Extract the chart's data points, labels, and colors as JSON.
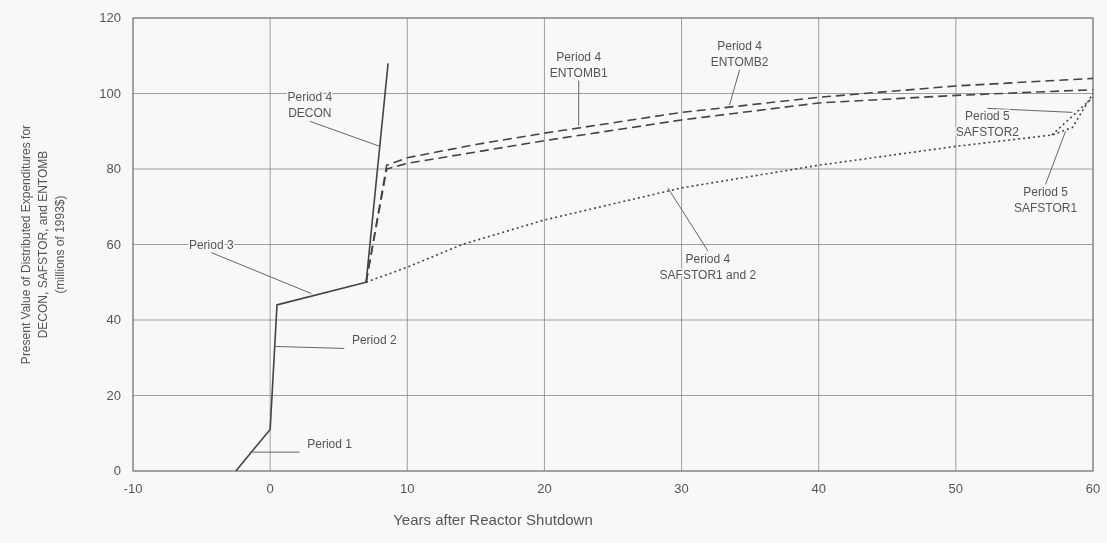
{
  "chart_data": {
    "type": "line",
    "xlabel": "Years after Reactor Shutdown",
    "ylabel": "Present Value of Distributed Expenditures for\nDECON, SAFSTOR, and ENTOMB\n(millions of 1993$)",
    "xlim": [
      -10,
      60
    ],
    "xticks": [
      -10,
      0,
      10,
      20,
      30,
      40,
      50,
      60
    ],
    "ylim": [
      0,
      120
    ],
    "yticks": [
      0,
      20,
      40,
      60,
      80,
      100,
      120
    ],
    "grid": true,
    "marker": "none",
    "series": [
      {
        "color": "#444444",
        "line_style": "solid",
        "x": [
          -2.5,
          0,
          0.5,
          7,
          8.6
        ],
        "values": [
          0,
          11,
          44,
          50,
          108
        ]
      },
      {
        "color": "#444444",
        "line_style": "dashed",
        "x": [
          7,
          8.5,
          10,
          15,
          20,
          30,
          40,
          50,
          60
        ],
        "values": [
          50,
          81,
          83,
          86.5,
          89.5,
          95,
          99,
          102,
          104
        ]
      },
      {
        "color": "#444444",
        "line_style": "dashed",
        "x": [
          7,
          8.5,
          10,
          15,
          20,
          30,
          40,
          50,
          60
        ],
        "values": [
          50,
          80,
          81.5,
          84.5,
          87.5,
          93,
          97.5,
          99.5,
          101
        ]
      },
      {
        "color": "#444444",
        "line_style": "dotted",
        "x": [
          7,
          10,
          14,
          20,
          30,
          40,
          50,
          57,
          58.5,
          60
        ],
        "values": [
          50,
          54,
          60,
          66.5,
          75,
          81,
          86,
          89,
          91,
          100
        ]
      },
      {
        "color": "#444444",
        "line_style": "dotted",
        "x": [
          57,
          58.5,
          60
        ],
        "values": [
          89,
          94,
          99
        ]
      }
    ],
    "annotations": [
      {
        "text": "Period 1",
        "x": -1.5,
        "y": 5
      },
      {
        "text": "Period 2",
        "x": 0.3,
        "y": 33
      },
      {
        "text": "Period 3",
        "x": 3,
        "y": 47
      },
      {
        "text": "Period 4\nDECON",
        "x": 8,
        "y": 86
      },
      {
        "text": "Period 4\nENTOMB1",
        "x": 22.5,
        "y": 91.5
      },
      {
        "text": "Period 4\nENTOMB2",
        "x": 33.5,
        "y": 97
      },
      {
        "text": "Period 4\nSAFSTOR1 and 2",
        "x": 29,
        "y": 75
      },
      {
        "text": "Period 5\nSAFSTOR2",
        "x": 58.5,
        "y": 95
      },
      {
        "text": "Period 5\nSAFSTOR1",
        "x": 58,
        "y": 90
      }
    ]
  }
}
